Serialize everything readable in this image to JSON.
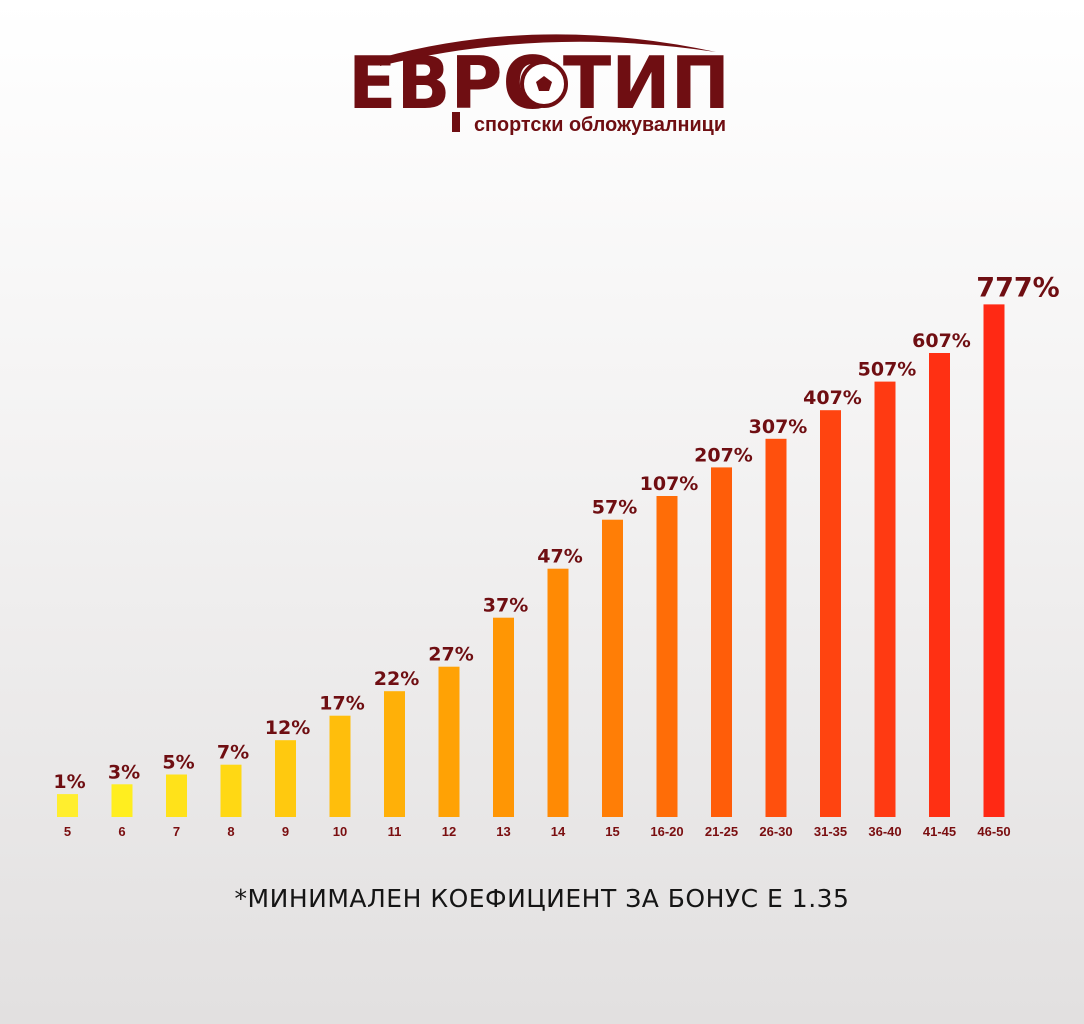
{
  "brand": {
    "logo_text": "ЕВРОТИП",
    "tagline": "спортски обложувалници",
    "color": "#6f0e12"
  },
  "chart_data": {
    "type": "bar",
    "categories": [
      "5",
      "6",
      "7",
      "8",
      "9",
      "10",
      "11",
      "12",
      "13",
      "14",
      "15",
      "16-20",
      "21-25",
      "26-30",
      "31-35",
      "36-40",
      "41-45",
      "46-50"
    ],
    "values": [
      1,
      3,
      5,
      7,
      12,
      17,
      22,
      27,
      37,
      47,
      57,
      107,
      207,
      307,
      407,
      507,
      607,
      777
    ],
    "data_labels": [
      "1%",
      "3%",
      "5%",
      "7%",
      "12%",
      "17%",
      "22%",
      "27%",
      "37%",
      "47%",
      "57%",
      "107%",
      "207%",
      "307%",
      "407%",
      "507%",
      "607%",
      "777%"
    ],
    "colors": [
      "#ffee2e",
      "#ffee1f",
      "#ffe21a",
      "#ffd814",
      "#ffc90f",
      "#ffbe0c",
      "#ffb008",
      "#ffa205",
      "#ff9604",
      "#ff8a04",
      "#ff7e06",
      "#ff6d07",
      "#ff5d09",
      "#ff500d",
      "#ff4410",
      "#ff3a12",
      "#ff3013",
      "#ff2914"
    ],
    "label_color": "#6f0e12",
    "axis_label_color": "#7a0e10",
    "title": "",
    "xlabel": "",
    "ylabel": "",
    "scale": "piecewise (non-linear)",
    "grid": false,
    "legend": "none"
  },
  "footnote": "*МИНИМАЛЕН КОЕФИЦИЕНТ ЗА БОНУС Е 1.35"
}
